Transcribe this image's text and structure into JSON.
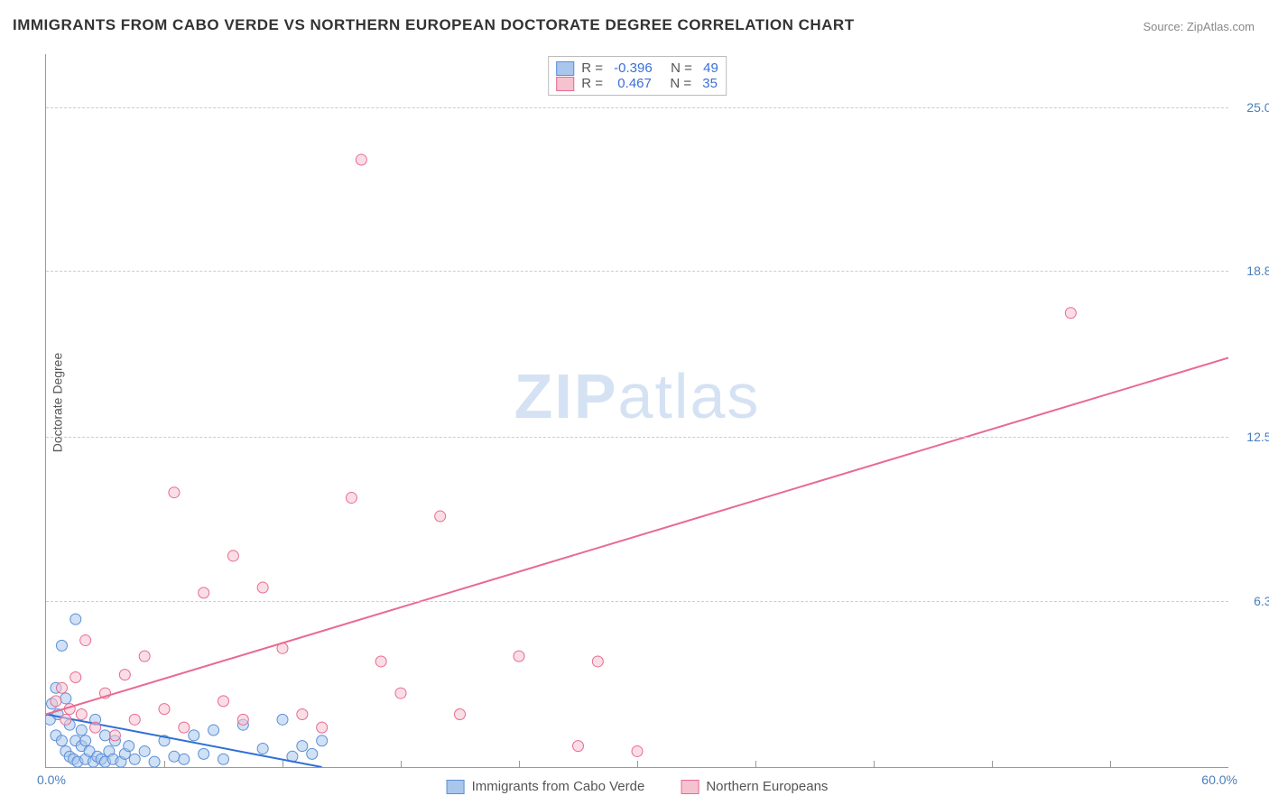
{
  "title": "IMMIGRANTS FROM CABO VERDE VS NORTHERN EUROPEAN DOCTORATE DEGREE CORRELATION CHART",
  "source": "Source: ZipAtlas.com",
  "ylabel": "Doctorate Degree",
  "watermark_a": "ZIP",
  "watermark_b": "atlas",
  "chart": {
    "type": "scatter-with-regression",
    "xlim": [
      0,
      60
    ],
    "ylim": [
      0,
      27
    ],
    "x_tick_min": "0.0%",
    "x_tick_max": "60.0%",
    "y_ticks": [
      {
        "v": 6.3,
        "label": "6.3%"
      },
      {
        "v": 12.5,
        "label": "12.5%"
      },
      {
        "v": 18.8,
        "label": "18.8%"
      },
      {
        "v": 25.0,
        "label": "25.0%"
      }
    ],
    "x_minor_ticks": [
      6,
      12,
      18,
      24,
      30,
      36,
      42,
      48,
      54
    ],
    "grid_color": "#cccccc",
    "axis_color": "#999999",
    "tick_text_color": "#4a7ebb",
    "background_color": "#ffffff",
    "marker_radius": 6,
    "marker_opacity": 0.55,
    "line_width": 2,
    "series": [
      {
        "name": "Immigrants from Cabo Verde",
        "color_fill": "#a9c6ec",
        "color_stroke": "#5b8fd6",
        "line_color": "#2f6fd6",
        "R": "-0.396",
        "N": "49",
        "regression": {
          "x1": 0,
          "y1": 2.0,
          "x2": 14,
          "y2": 0.0
        },
        "points": [
          [
            0.2,
            1.8
          ],
          [
            0.3,
            2.4
          ],
          [
            0.5,
            3.0
          ],
          [
            0.5,
            1.2
          ],
          [
            0.6,
            2.0
          ],
          [
            0.8,
            4.6
          ],
          [
            0.8,
            1.0
          ],
          [
            1.0,
            0.6
          ],
          [
            1.0,
            2.6
          ],
          [
            1.2,
            0.4
          ],
          [
            1.2,
            1.6
          ],
          [
            1.4,
            0.3
          ],
          [
            1.5,
            1.0
          ],
          [
            1.5,
            5.6
          ],
          [
            1.6,
            0.2
          ],
          [
            1.8,
            0.8
          ],
          [
            1.8,
            1.4
          ],
          [
            2.0,
            0.3
          ],
          [
            2.0,
            1.0
          ],
          [
            2.2,
            0.6
          ],
          [
            2.4,
            0.2
          ],
          [
            2.5,
            1.8
          ],
          [
            2.6,
            0.4
          ],
          [
            2.8,
            0.3
          ],
          [
            3.0,
            1.2
          ],
          [
            3.0,
            0.2
          ],
          [
            3.2,
            0.6
          ],
          [
            3.4,
            0.3
          ],
          [
            3.5,
            1.0
          ],
          [
            3.8,
            0.2
          ],
          [
            4.0,
            0.5
          ],
          [
            4.2,
            0.8
          ],
          [
            4.5,
            0.3
          ],
          [
            5.0,
            0.6
          ],
          [
            5.5,
            0.2
          ],
          [
            6.0,
            1.0
          ],
          [
            6.5,
            0.4
          ],
          [
            7.0,
            0.3
          ],
          [
            7.5,
            1.2
          ],
          [
            8.0,
            0.5
          ],
          [
            8.5,
            1.4
          ],
          [
            9.0,
            0.3
          ],
          [
            10.0,
            1.6
          ],
          [
            11.0,
            0.7
          ],
          [
            12.0,
            1.8
          ],
          [
            12.5,
            0.4
          ],
          [
            13.0,
            0.8
          ],
          [
            13.5,
            0.5
          ],
          [
            14.0,
            1.0
          ]
        ]
      },
      {
        "name": "Northern Europeans",
        "color_fill": "#f5c2d0",
        "color_stroke": "#e86a92",
        "line_color": "#e86a92",
        "R": "0.467",
        "N": "35",
        "regression": {
          "x1": 0,
          "y1": 2.0,
          "x2": 60,
          "y2": 15.5
        },
        "points": [
          [
            0.5,
            2.5
          ],
          [
            0.8,
            3.0
          ],
          [
            1.0,
            1.8
          ],
          [
            1.2,
            2.2
          ],
          [
            1.5,
            3.4
          ],
          [
            1.8,
            2.0
          ],
          [
            2.0,
            4.8
          ],
          [
            2.5,
            1.5
          ],
          [
            3.0,
            2.8
          ],
          [
            3.5,
            1.2
          ],
          [
            4.0,
            3.5
          ],
          [
            4.5,
            1.8
          ],
          [
            5.0,
            4.2
          ],
          [
            6.0,
            2.2
          ],
          [
            6.5,
            10.4
          ],
          [
            7.0,
            1.5
          ],
          [
            8.0,
            6.6
          ],
          [
            9.0,
            2.5
          ],
          [
            9.5,
            8.0
          ],
          [
            10.0,
            1.8
          ],
          [
            11.0,
            6.8
          ],
          [
            12.0,
            4.5
          ],
          [
            13.0,
            2.0
          ],
          [
            14.0,
            1.5
          ],
          [
            15.5,
            10.2
          ],
          [
            16.0,
            23.0
          ],
          [
            17.0,
            4.0
          ],
          [
            18.0,
            2.8
          ],
          [
            20.0,
            9.5
          ],
          [
            21.0,
            2.0
          ],
          [
            24.0,
            4.2
          ],
          [
            27.0,
            0.8
          ],
          [
            28.0,
            4.0
          ],
          [
            52.0,
            17.2
          ],
          [
            30.0,
            0.6
          ]
        ]
      }
    ]
  },
  "legend_bottom": [
    {
      "label": "Immigrants from Cabo Verde",
      "fill": "#a9c6ec",
      "stroke": "#5b8fd6"
    },
    {
      "label": "Northern Europeans",
      "fill": "#f5c2d0",
      "stroke": "#e86a92"
    }
  ]
}
